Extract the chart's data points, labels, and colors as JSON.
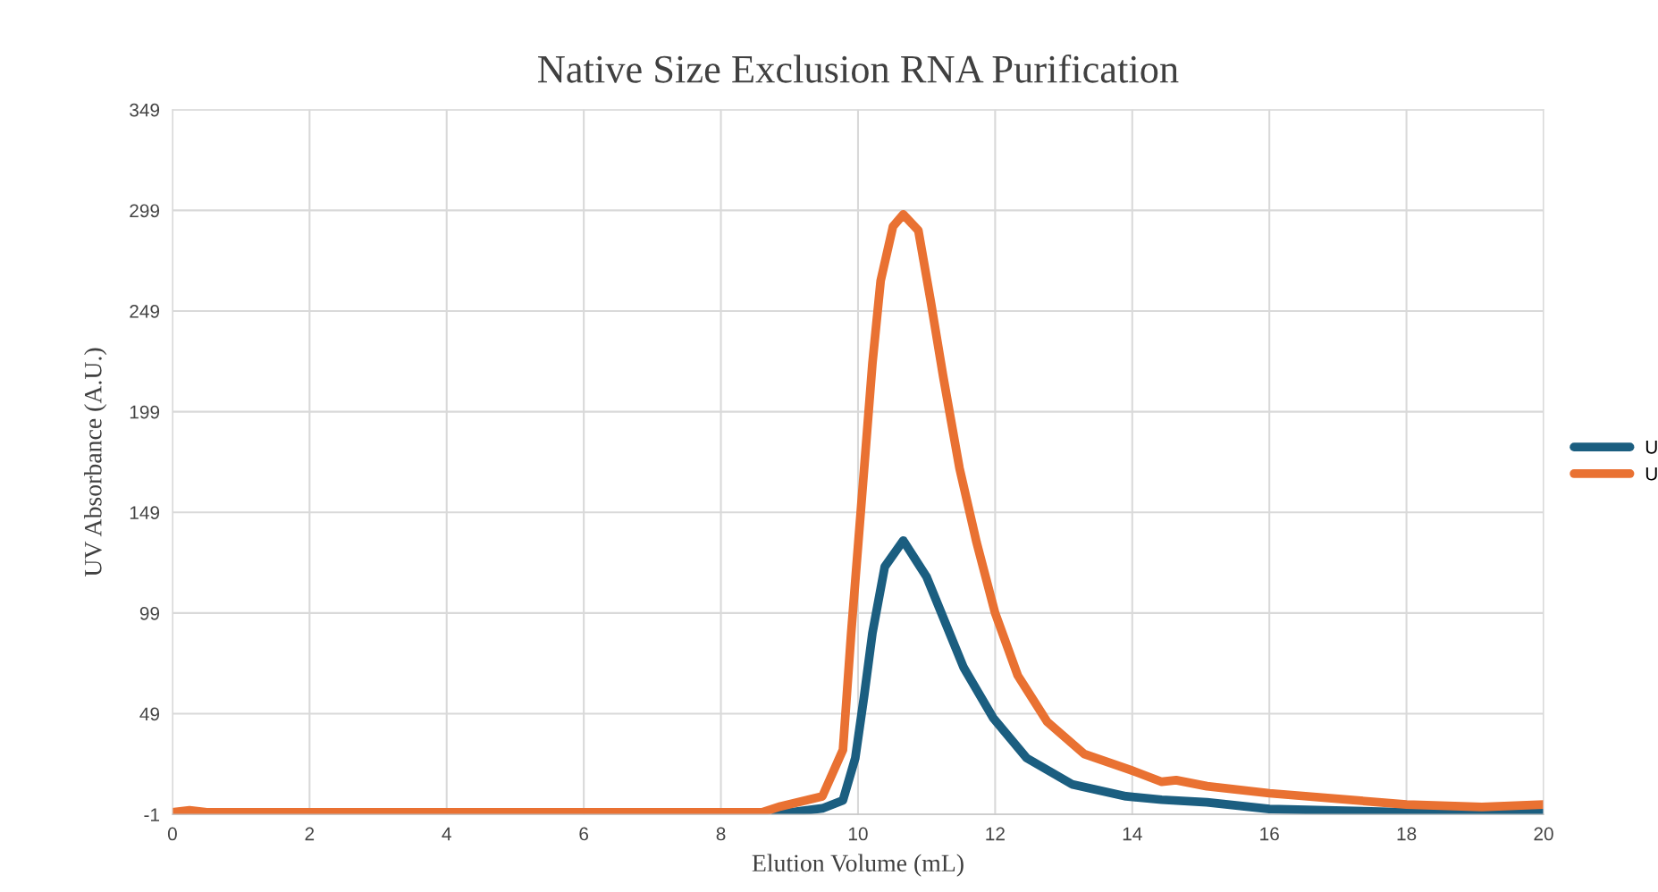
{
  "chart_data": {
    "type": "line",
    "title": "Native Size Exclusion RNA Purification",
    "xlabel": "Elution Volume (mL)",
    "ylabel": "UV Absorbance (A.U.)",
    "xlim": [
      0,
      20
    ],
    "xticks": [
      0,
      2,
      4,
      6,
      8,
      10,
      12,
      14,
      16,
      18,
      20
    ],
    "ylim": [
      -1,
      349
    ],
    "yticks": [
      -1,
      49,
      99,
      149,
      199,
      249,
      299,
      349
    ],
    "grid": true,
    "legend": "right",
    "marker": "none",
    "line_style": "solid",
    "series": [
      {
        "name": "U",
        "color": "#1b5e80",
        "x": [
          8.8,
          9.48,
          9.78,
          9.96,
          10.09,
          10.21,
          10.39,
          10.66,
          11.0,
          11.24,
          11.54,
          11.97,
          12.46,
          13.12,
          13.91,
          14.43,
          15.09,
          16,
          18,
          19.1,
          20
        ],
        "values": [
          -1,
          2,
          6,
          27,
          58,
          89,
          122,
          135,
          117,
          97,
          72,
          47,
          27,
          14,
          8,
          6.3,
          5,
          1.7,
          0,
          -0.5,
          0.3
        ]
      },
      {
        "name": "U",
        "color": "#e97132",
        "x": [
          0,
          0.25,
          0.5,
          2,
          4,
          6,
          8,
          8.6,
          8.87,
          9.48,
          9.78,
          9.9,
          10.09,
          10.21,
          10.33,
          10.51,
          10.66,
          10.88,
          11.06,
          11.24,
          11.48,
          11.73,
          12.0,
          12.33,
          12.76,
          13.3,
          13.98,
          14.43,
          14.64,
          15.09,
          16,
          18,
          19.1,
          20
        ],
        "values": [
          0,
          1,
          0,
          0,
          0,
          0,
          0,
          0,
          3,
          8,
          31,
          89,
          171,
          223,
          264,
          291,
          297,
          289,
          254,
          217,
          171,
          134,
          99,
          68,
          45,
          29,
          21,
          15.2,
          16,
          13,
          9.5,
          3.9,
          2.7,
          3.9
        ]
      }
    ]
  }
}
